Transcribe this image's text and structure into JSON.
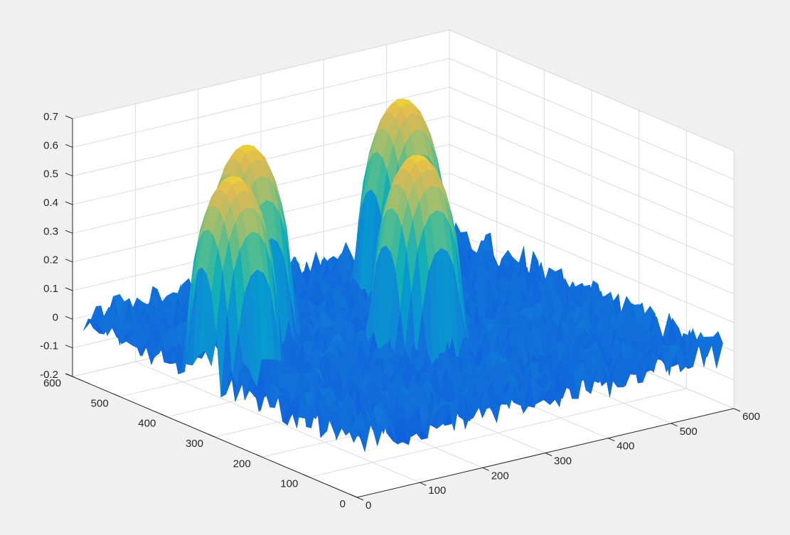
{
  "chart_data": {
    "type": "surface",
    "title": "",
    "xlabel": "",
    "ylabel": "",
    "zlabel": "",
    "xlim": [
      0,
      600
    ],
    "ylim": [
      0,
      600
    ],
    "zlim": [
      -0.2,
      0.7
    ],
    "x_ticks": [
      "0",
      "100",
      "200",
      "300",
      "400",
      "500",
      "600"
    ],
    "y_ticks": [
      "0",
      "100",
      "200",
      "300",
      "400",
      "500",
      "600"
    ],
    "z_ticks": [
      "-0.2",
      "-0.1",
      "0",
      "0.1",
      "0.2",
      "0.3",
      "0.4",
      "0.5",
      "0.6",
      "0.7"
    ],
    "grid": true,
    "colormap": "parula",
    "noise_floor": {
      "mean": 0.0,
      "amplitude": 0.07
    },
    "peaks": [
      {
        "x": 60,
        "y": 340,
        "height": 0.65,
        "radius": 60
      },
      {
        "x": 150,
        "y": 430,
        "height": 0.65,
        "radius": 60
      },
      {
        "x": 300,
        "y": 270,
        "height": 0.65,
        "radius": 60
      },
      {
        "x": 420,
        "y": 460,
        "height": 0.65,
        "radius": 60
      }
    ]
  },
  "colors": {
    "figure_background": "#f0f0f0",
    "axes_background": "#ffffff",
    "grid": "#dcdcdc",
    "axis_line": "#262626"
  }
}
